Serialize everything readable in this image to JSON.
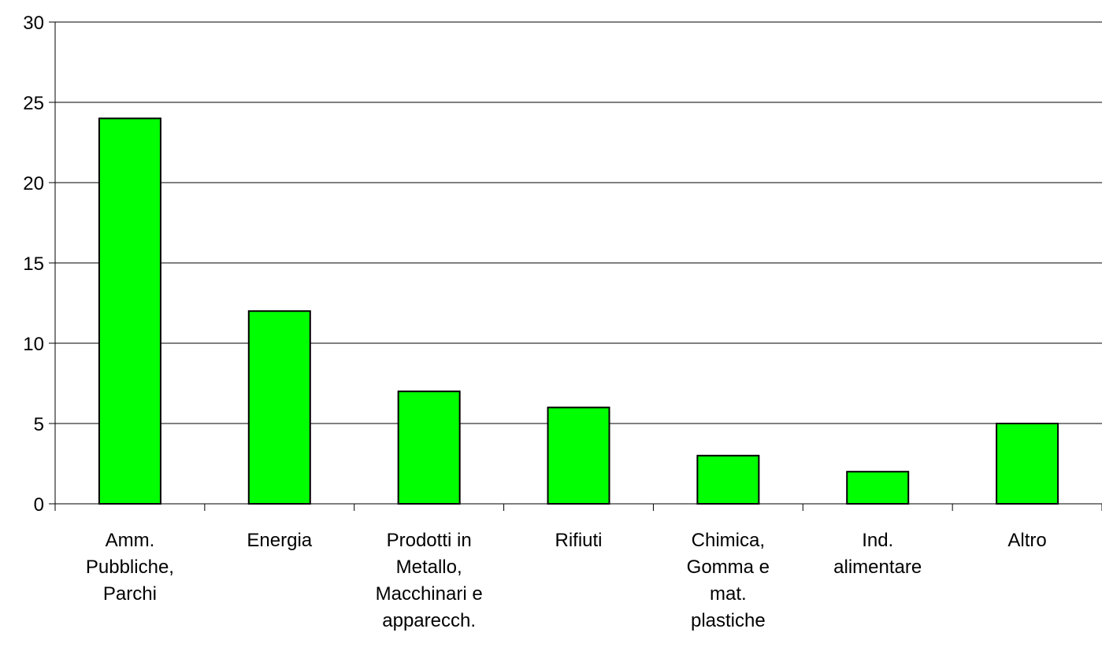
{
  "chart_data": {
    "type": "bar",
    "categories": [
      [
        "Amm.",
        "Pubbliche,",
        "Parchi"
      ],
      [
        "Energia"
      ],
      [
        "Prodotti in",
        "Metallo,",
        "Macchinari e",
        "apparecch."
      ],
      [
        "Rifiuti"
      ],
      [
        "Chimica,",
        "Gomma e",
        "mat.",
        "plastiche"
      ],
      [
        "Ind.",
        "alimentare"
      ],
      [
        "Altro"
      ]
    ],
    "values": [
      24,
      12,
      7,
      6,
      3,
      2,
      5
    ],
    "y_ticks": [
      "0",
      "5",
      "10",
      "15",
      "20",
      "25",
      "30"
    ],
    "ylim": [
      0,
      30
    ],
    "grid": true,
    "legend": "none",
    "title": "",
    "xlabel": "",
    "ylabel": "",
    "colors": {
      "bar_fill": "#00ff00",
      "bar_stroke": "#000000",
      "grid": "#000000",
      "axis": "#000000"
    }
  }
}
